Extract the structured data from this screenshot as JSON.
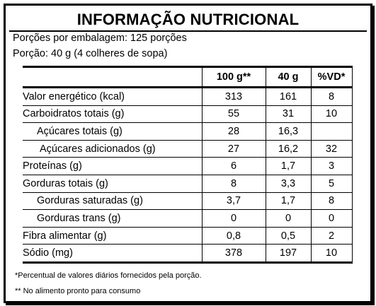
{
  "title": "INFORMAÇÃO NUTRICIONAL",
  "servings_per_package": "Porções por embalagem: 125 porções",
  "serving_size": "Porção: 40 g (4 colheres de sopa)",
  "columns": [
    "",
    "100 g**",
    "40 g",
    "%VD*"
  ],
  "rows": [
    {
      "name": "Valor energético (kcal)",
      "v100": "313",
      "v40": "161",
      "vd": "8"
    },
    {
      "name": "Carboidratos totais (g)",
      "v100": "55",
      "v40": "31",
      "vd": "10"
    },
    {
      "name": "Açúcares totais (g)",
      "v100": "28",
      "v40": "16,3",
      "vd": ""
    },
    {
      "name": "Açúcares adicionados (g)",
      "v100": "27",
      "v40": "16,2",
      "vd": "32"
    },
    {
      "name": "Proteínas (g)",
      "v100": "6",
      "v40": "1,7",
      "vd": "3"
    },
    {
      "name": "Gorduras totais (g)",
      "v100": "8",
      "v40": "3,3",
      "vd": "5"
    },
    {
      "name": "Gorduras saturadas (g)",
      "v100": "3,7",
      "v40": "1,7",
      "vd": "8"
    },
    {
      "name": "Gorduras trans (g)",
      "v100": "0",
      "v40": "0",
      "vd": "0"
    },
    {
      "name": "Fibra alimentar (g)",
      "v100": "0,8",
      "v40": "0,5",
      "vd": "2"
    },
    {
      "name": "Sódio (mg)",
      "v100": "378",
      "v40": "197",
      "vd": "10"
    }
  ],
  "footnotes": [
    "*Percentual de valores diários fornecidos pela porção.",
    "** No alimento pronto para consumo"
  ]
}
